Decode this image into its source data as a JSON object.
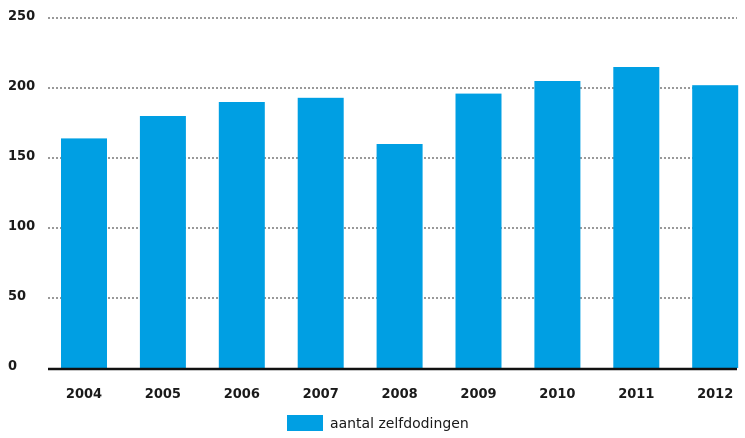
{
  "chart_data": {
    "type": "bar",
    "categories": [
      "2004",
      "2005",
      "2006",
      "2007",
      "2008",
      "2009",
      "2010",
      "2011",
      "2012"
    ],
    "series": [
      {
        "name": "aantal zelfdodingen",
        "values": [
          164,
          180,
          190,
          193,
          160,
          196,
          205,
          215,
          202
        ],
        "color": "#009fe3"
      }
    ],
    "y_ticks": [
      0,
      50,
      100,
      150,
      200,
      250
    ],
    "ylim": [
      0,
      250
    ],
    "grid": "horizontal dotted",
    "legend_position": "bottom-center",
    "title": "",
    "xlabel": "",
    "ylabel": ""
  }
}
